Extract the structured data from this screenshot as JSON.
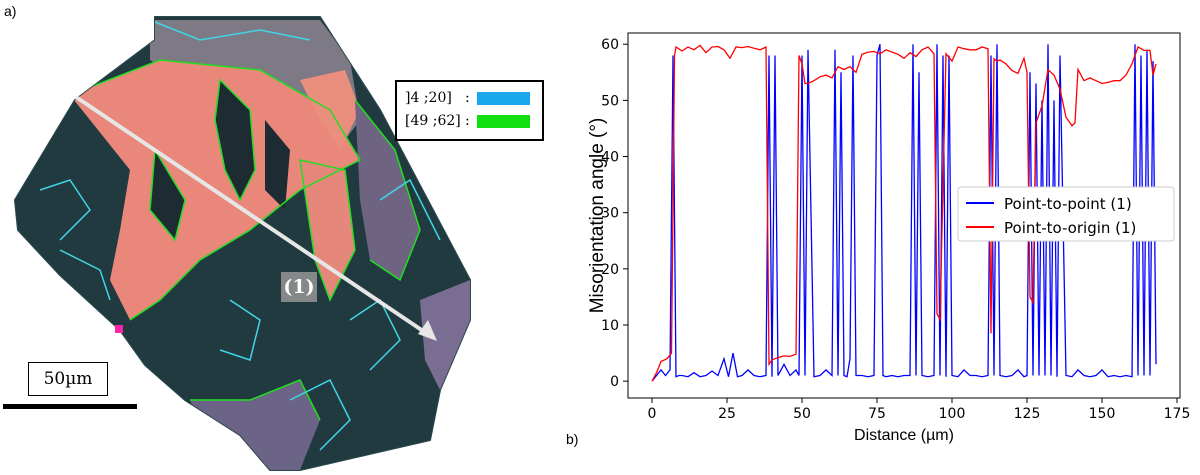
{
  "panel_a": {
    "label": "a)",
    "legend": [
      {
        "label": "]4 ;20]",
        "color": "#1aa7ec"
      },
      {
        "label": "[49 ;62]",
        "color": "#10e010"
      }
    ],
    "sep": ":",
    "scale_label": "50µm",
    "line_label": "(1)"
  },
  "panel_b": {
    "label": "b)"
  },
  "chart_data": {
    "type": "line",
    "xlabel": "Distance (µm)",
    "ylabel": "Misorientation angle (°)",
    "xlim": [
      -8,
      176
    ],
    "ylim": [
      -3,
      62
    ],
    "xticks": [
      0,
      25,
      50,
      75,
      100,
      125,
      150,
      175
    ],
    "yticks": [
      0,
      10,
      20,
      30,
      40,
      50,
      60
    ],
    "grid": false,
    "legend_position": "center-right",
    "series": [
      {
        "name": "Point-to-point (1)",
        "color": "#0000ff",
        "x": [
          0,
          1.5,
          3,
          4.5,
          6,
          7,
          8,
          9,
          10,
          12,
          14,
          16,
          18,
          20,
          22,
          24,
          25.5,
          27,
          28.5,
          30,
          32,
          34,
          36,
          38,
          39,
          40,
          41,
          42,
          44,
          46,
          48,
          49,
          50,
          51,
          52,
          54,
          56,
          58,
          60,
          61,
          62,
          63,
          64,
          65,
          66,
          67,
          68,
          70,
          72,
          74,
          75,
          76,
          77,
          78,
          80,
          82,
          84,
          86,
          87,
          88,
          89,
          90,
          92,
          94,
          95,
          96,
          97,
          98,
          99,
          100,
          102,
          104,
          106,
          108,
          110,
          112,
          113,
          114,
          115,
          116,
          118,
          120,
          122,
          124,
          125,
          126,
          127,
          128,
          129,
          130,
          131,
          132,
          133,
          134,
          135,
          136,
          138,
          140,
          142,
          144,
          146,
          148,
          150,
          152,
          154,
          156,
          158,
          160,
          161,
          162,
          163,
          164,
          165,
          166,
          167,
          168
        ],
        "values": [
          0,
          1,
          2,
          1,
          2,
          58,
          0.8,
          1,
          1,
          0.8,
          1.5,
          0.8,
          1,
          1.8,
          1,
          4,
          0.8,
          5,
          0.8,
          1,
          2,
          1,
          0.8,
          1,
          58,
          0.8,
          58,
          1,
          3,
          1,
          2,
          1,
          58,
          1,
          59,
          0.8,
          1,
          2,
          1,
          59,
          1,
          55,
          1,
          0.8,
          4,
          58,
          1,
          1,
          0.8,
          1,
          58,
          60,
          1,
          0.8,
          1,
          0.8,
          1,
          1,
          60,
          1,
          55,
          1,
          0.8,
          1,
          60,
          1,
          58,
          0.8,
          58,
          1,
          0.8,
          2,
          1,
          1,
          0.8,
          1,
          58,
          1,
          60,
          1,
          0.8,
          1,
          2,
          0.8,
          1,
          55,
          1,
          53,
          1,
          50,
          1,
          60,
          1,
          50,
          0.8,
          58,
          1,
          0.8,
          2,
          1,
          0.8,
          1,
          2,
          0.8,
          1,
          0.8,
          1,
          0.8,
          60,
          1,
          58,
          1,
          59,
          1,
          57,
          3
        ]
      },
      {
        "name": "Point-to-origin (1)",
        "color": "#ff0000",
        "x": [
          0,
          1.5,
          3,
          5,
          6.5,
          7.5,
          8,
          10,
          12,
          14,
          16,
          18,
          20,
          22,
          24,
          26,
          28,
          30,
          32,
          34,
          36,
          38,
          39,
          40,
          42,
          44,
          46,
          48,
          49,
          50,
          51,
          52,
          54,
          56,
          58,
          60,
          62,
          64,
          66,
          68,
          70,
          72,
          74,
          76,
          78,
          80,
          82,
          84,
          86,
          88,
          90,
          92,
          94,
          95,
          96,
          98,
          100,
          102,
          104,
          106,
          108,
          110,
          112,
          113,
          114,
          115,
          116,
          118,
          120,
          122,
          124,
          125,
          126,
          127,
          128,
          130,
          132,
          134,
          136,
          138,
          140,
          141,
          142,
          144,
          146,
          148,
          150,
          152,
          154,
          156,
          158,
          160,
          162,
          164,
          166,
          167,
          168
        ],
        "values": [
          0,
          1.5,
          3.5,
          4,
          5,
          58,
          59.5,
          58.8,
          59.5,
          59,
          59.8,
          58.5,
          59.5,
          59.6,
          59,
          57.5,
          59.5,
          59.4,
          59.6,
          59.3,
          59,
          59.5,
          3,
          3.8,
          4.2,
          4.5,
          4.4,
          4.8,
          58,
          56.5,
          53,
          53,
          53.5,
          54.2,
          54.5,
          54,
          56,
          55.5,
          56,
          55,
          58.2,
          58.6,
          58.7,
          58.3,
          59,
          58.6,
          58.2,
          57.5,
          58.5,
          57.8,
          59,
          59.5,
          58.3,
          12,
          11,
          58.3,
          57,
          59.5,
          59.2,
          59,
          59,
          59.5,
          59.2,
          8.5,
          57.4,
          57,
          57.2,
          56.5,
          55.3,
          54.8,
          57.5,
          55,
          15,
          14,
          46,
          49,
          55.5,
          54.5,
          52,
          47,
          45.5,
          46,
          55.5,
          53.5,
          54,
          53.5,
          53,
          53.2,
          53.5,
          53.5,
          54.5,
          56.5,
          59.5,
          58.9,
          58.9,
          54.5,
          56.5
        ]
      }
    ]
  }
}
